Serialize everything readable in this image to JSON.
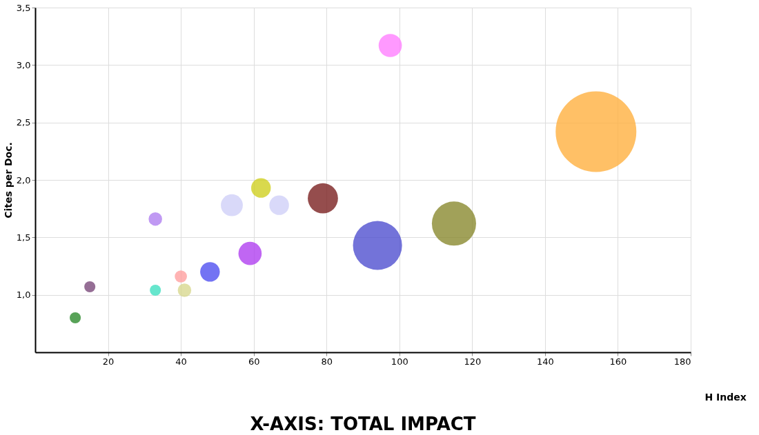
{
  "chart_data": {
    "type": "bubble",
    "xlabel": "H Index",
    "ylabel": "Cites per Doc.",
    "annotations": [
      "X-AXIS: TOTAL IMPACT"
    ],
    "x": [
      11,
      15,
      33,
      33,
      40,
      41,
      48,
      54,
      59,
      62,
      67,
      79,
      94,
      97.5,
      115,
      154
    ],
    "values": [
      0.8,
      1.07,
      1.04,
      1.66,
      1.16,
      1.04,
      1.2,
      1.78,
      1.36,
      1.93,
      1.78,
      1.84,
      1.43,
      3.17,
      1.62,
      2.42
    ],
    "sizes": [
      0.019,
      0.019,
      0.019,
      0.028,
      0.023,
      0.028,
      0.059,
      0.074,
      0.083,
      0.059,
      0.059,
      0.14,
      0.37,
      0.083,
      0.3,
      1
    ],
    "colors": [
      "#2e8b2e",
      "#7a4a7a",
      "#40e0c0",
      "#b080f0",
      "#ffa0a0",
      "#d8d890",
      "#5050f0",
      "#d0d0f8",
      "#b040f0",
      "#d0d020",
      "#d0d0f8",
      "#7a2020",
      "#5050d0",
      "#ff80ff",
      "#8a8a30",
      "#ffb040"
    ],
    "xlim": [
      0,
      180
    ],
    "xticks": [
      20,
      40,
      60,
      80,
      100,
      120,
      140,
      160,
      180
    ],
    "ylim": [
      0.5,
      3.5
    ],
    "yticks": [
      {
        "value": 1.0,
        "label": "1,0"
      },
      {
        "value": 1.5,
        "label": "1,5"
      },
      {
        "value": 2.0,
        "label": "2,0"
      },
      {
        "value": 2.5,
        "label": "2,5"
      },
      {
        "value": 3.0,
        "label": "3,0"
      },
      {
        "value": 3.5,
        "label": "3,5"
      }
    ],
    "grid": true,
    "legend": false
  }
}
